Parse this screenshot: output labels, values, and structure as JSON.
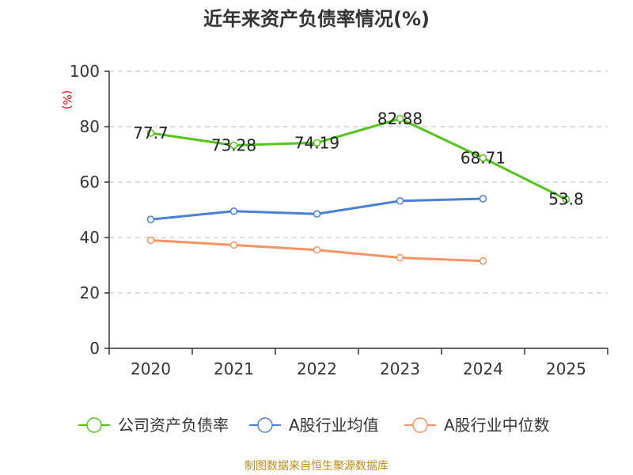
{
  "chart_data": {
    "type": "line",
    "title": "近年来资产负债率情况(%)",
    "unit_label": "(%)",
    "categories": [
      "2020",
      "2021",
      "2022",
      "2023",
      "2024",
      "2025"
    ],
    "ylim": [
      0,
      100
    ],
    "yticks": [
      0,
      20,
      40,
      60,
      80,
      100
    ],
    "grid": true,
    "legend_position": "bottom",
    "series": [
      {
        "name": "公司资产负债率",
        "color": "#52c41a",
        "values": [
          77.7,
          73.28,
          74.19,
          82.88,
          68.71,
          53.8
        ],
        "labels": [
          "77.7",
          "73.28",
          "74.19",
          "82.88",
          "68.71",
          "53.8"
        ]
      },
      {
        "name": "A股行业均值",
        "color": "#4a7fd6",
        "values": [
          46.5,
          49.5,
          48.5,
          53.2,
          54.0,
          null
        ]
      },
      {
        "name": "A股行业中位数",
        "color": "#f59363",
        "values": [
          39.0,
          37.3,
          35.5,
          32.7,
          31.5,
          null
        ]
      }
    ],
    "source": "制图数据来自恒生聚源数据库"
  }
}
